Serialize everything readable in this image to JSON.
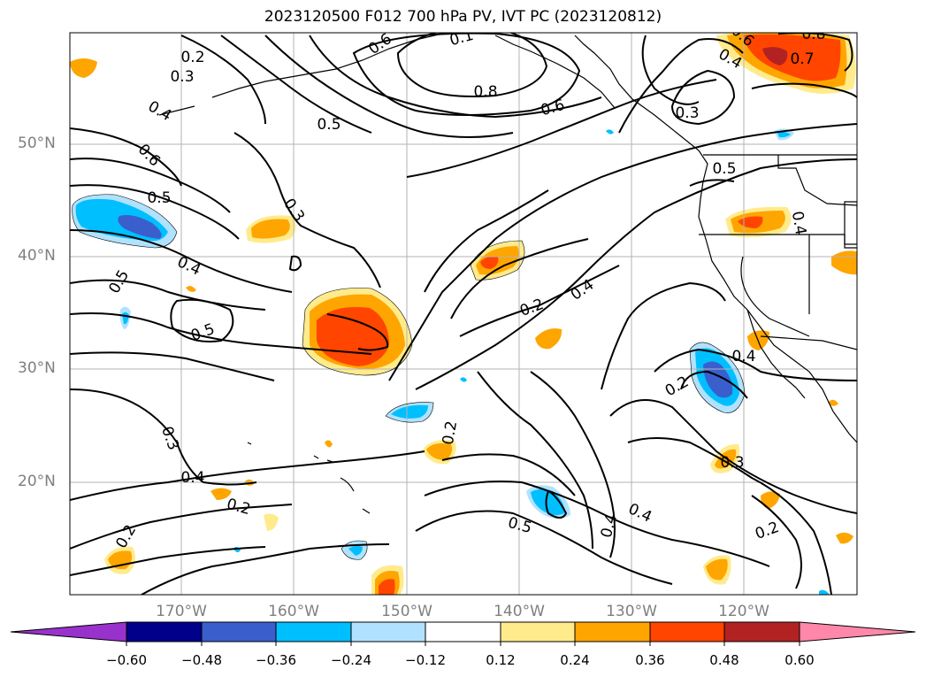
{
  "title": "2023120500 F012 700 hPa PV, IVT PC (2023120812)",
  "latitude_labels": [
    "50°N",
    "40°N",
    "30°N",
    "20°N"
  ],
  "longitude_labels": [
    "170°W",
    "160°W",
    "150°W",
    "140°W",
    "130°W",
    "120°W"
  ],
  "contour_labels": [
    "0.2",
    "0.3",
    "0.6",
    "0.1",
    "0.8",
    "0.6",
    "0.3",
    "0.7",
    "0.8",
    "0.6",
    "0.4",
    "0.5",
    "0.4",
    "0.6",
    "0.5",
    "0.3",
    "0.5",
    "0.4",
    "0.5",
    "0.5",
    "0.4",
    "0.4",
    "0.2",
    "0.4",
    "0.2",
    "0.2",
    "0.3",
    "0.4",
    "0.2",
    "0.3",
    "0.5",
    "0.4",
    "0.4",
    "0.2",
    "0.2"
  ],
  "colorbar": {
    "tick_labels": [
      "−0.60",
      "−0.48",
      "−0.36",
      "−0.24",
      "−0.12",
      "0.12",
      "0.24",
      "0.36",
      "0.48",
      "0.60"
    ],
    "colors": [
      "#9932cc",
      "#00008b",
      "#3a5fcd",
      "#00bfff",
      "#b0e2ff",
      "#ffffff",
      "#ffeb8c",
      "#ffa500",
      "#ff4500",
      "#b22222",
      "#ff88aa"
    ]
  },
  "fill_colors": {
    "yellow": "#ffeb8c",
    "orange": "#ffa500",
    "red": "#ff4500",
    "darkred": "#b22222",
    "lightblue": "#b0e2ff",
    "skyblue": "#00bfff",
    "blue": "#3a5fcd"
  }
}
